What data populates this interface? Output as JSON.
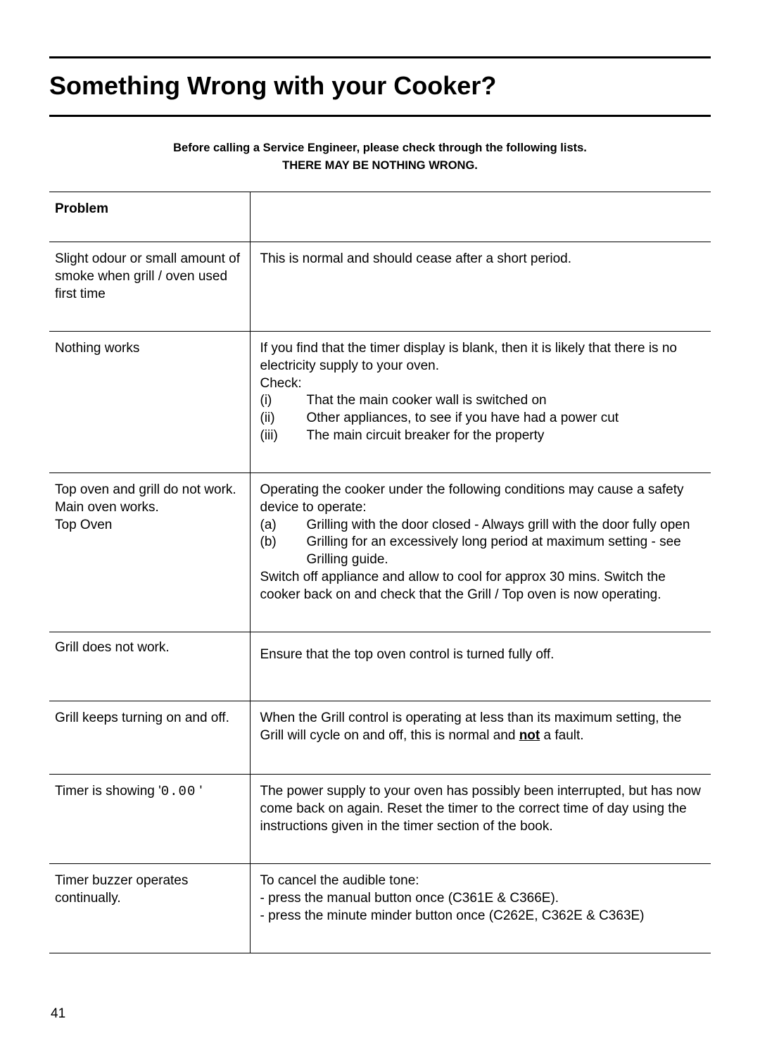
{
  "title": "Something Wrong with your Cooker?",
  "intro": {
    "line1": "Before calling a Service Engineer, please check through the following lists.",
    "line2": "THERE MAY BE NOTHING WRONG."
  },
  "table": {
    "header_problem": "Problem",
    "header_solution": "",
    "rows": [
      {
        "problem": "Slight odour or small amount of smoke when grill / oven used first time",
        "solution": "This is normal and should cease after a short period."
      },
      {
        "problem": "Nothing works",
        "solution_intro": "If you find that the timer display is blank, then it is likely that there is no electricity supply to your oven.",
        "solution_check": "Check:",
        "checks": [
          {
            "num": "(i)",
            "text": "That the main cooker wall is switched on"
          },
          {
            "num": "(ii)",
            "text": "Other appliances, to see if you have had a power cut"
          },
          {
            "num": "(iii)",
            "text": "The main circuit breaker for the property"
          }
        ]
      },
      {
        "problem": "Top oven and grill do not work. Main oven works.\nTop Oven",
        "solution_intro": "Operating the cooker under the following conditions may cause a safety device to operate:",
        "items": [
          {
            "num": "(a)",
            "text": "Grilling with the door closed - Always grill with the door fully open"
          },
          {
            "num": "(b)",
            "text": "Grilling for an excessively long period at maximum setting - see Grilling guide."
          }
        ],
        "solution_outro": "Switch off appliance and allow to cool for approx 30 mins. Switch the cooker back on and check that the Grill / Top oven is now operating."
      },
      {
        "problem": "Grill does not work.",
        "solution": "Ensure that the top oven control is turned fully off."
      },
      {
        "problem": "Grill keeps turning on and off.",
        "solution_pre": "When the Grill control is operating at less than its maximum setting, the Grill will cycle on and off, this is normal and ",
        "solution_bold": "not",
        "solution_post": " a fault."
      },
      {
        "problem_pre": "Timer is showing '",
        "problem_code": "0.00",
        "problem_post": "   '",
        "solution": "The power supply to your oven has possibly been interrupted, but has now come back on again. Reset the timer to the correct time of day using the instructions given in the timer section of the book."
      },
      {
        "problem": "Timer buzzer operates continually.",
        "solution_line1": "To cancel the audible tone:",
        "solution_line2": "- press the manual button once (C361E & C366E).",
        "solution_line3": "- press the minute minder button once (C262E, C362E & C363E)"
      }
    ]
  },
  "page_number": "41"
}
